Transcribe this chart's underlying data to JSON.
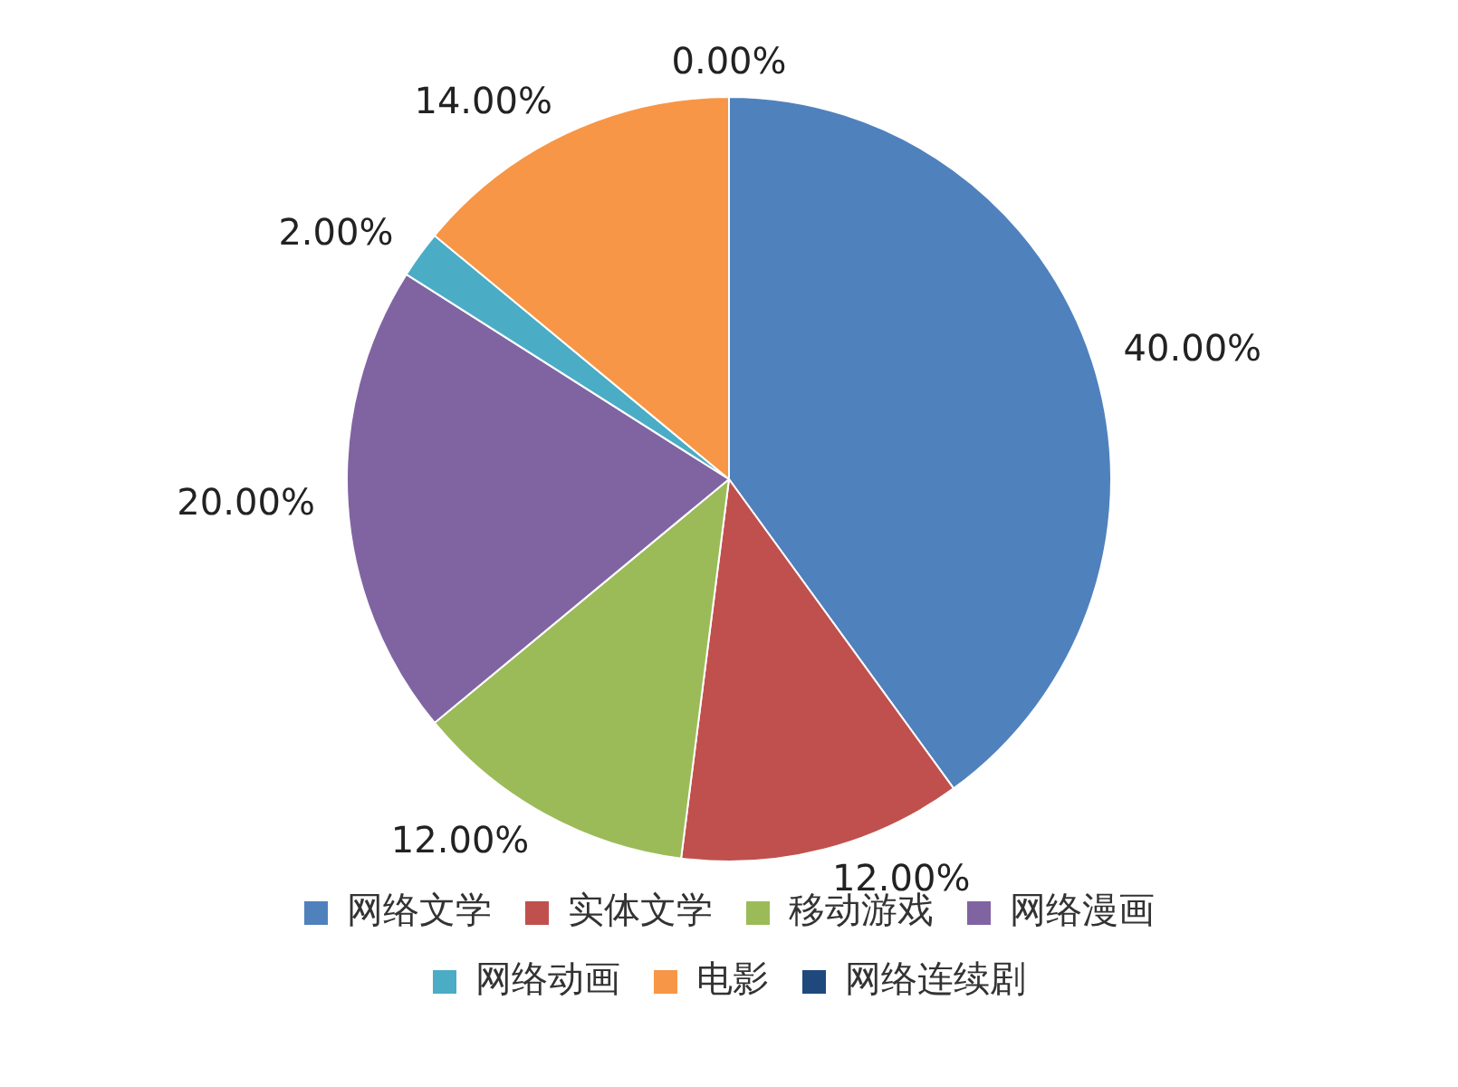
{
  "chart_data": {
    "type": "pie",
    "categories": [
      "网络文学",
      "实体文学",
      "移动游戏",
      "网络漫画",
      "网络动画",
      "电影",
      "网络连续剧"
    ],
    "values": [
      40,
      12,
      12,
      20,
      2,
      14,
      0
    ],
    "colors": [
      "#4f81bd",
      "#c0504d",
      "#9bbb59",
      "#8064a2",
      "#4bacc6",
      "#f79646",
      "#1f497d"
    ],
    "value_labels": [
      "40.00%",
      "12.00%",
      "12.00%",
      "20.00%",
      "2.00%",
      "14.00%",
      "0.00%"
    ],
    "legend": "bottom"
  }
}
